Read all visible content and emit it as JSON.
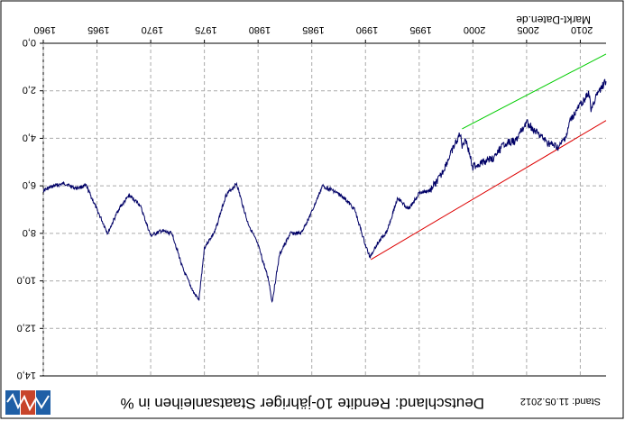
{
  "chart_data": {
    "type": "line",
    "title": "Deutschland: Rendite 10-jähriger Staatsanleihen in %",
    "source": "Markt-Daten.de",
    "stand": "Stand: 11.05.2012",
    "x_ticks": [
      "1960",
      "1965",
      "1970",
      "1975",
      "1980",
      "1985",
      "1990",
      "1995",
      "2000",
      "2005",
      "2010"
    ],
    "y_ticks": [
      "0,0",
      "2,0",
      "4,0",
      "6,0",
      "8,0",
      "10,0",
      "12,0",
      "14,0"
    ],
    "xlim": [
      1960,
      2012.4
    ],
    "ylim": [
      0,
      14
    ],
    "y_inverted": true,
    "grid": true,
    "series": [
      {
        "color": "#000066",
        "x": [
          1960,
          1961,
          1962,
          1963,
          1964,
          1965,
          1966,
          1967,
          1968,
          1969,
          1970,
          1971,
          1972,
          1973,
          1974,
          1974.5,
          1975,
          1976,
          1977,
          1978,
          1979,
          1980,
          1981,
          1981.3,
          1982,
          1983,
          1984,
          1985,
          1986,
          1987,
          1988,
          1989,
          1990,
          1990.4,
          1991,
          1992,
          1993,
          1994,
          1995,
          1996,
          1997,
          1998,
          1998.8,
          1999,
          1999.3,
          2000,
          2001,
          2002,
          2003,
          2004,
          2005,
          2006,
          2007,
          2008,
          2008.8,
          2009,
          2010,
          2010.8,
          2011,
          2011.3,
          2011.9,
          2012.4
        ],
        "y": [
          6.2,
          6.0,
          5.9,
          6.1,
          6.0,
          7.0,
          8.0,
          7.0,
          6.4,
          6.8,
          8.1,
          7.9,
          8.0,
          9.5,
          10.5,
          10.8,
          8.6,
          7.9,
          6.4,
          5.9,
          7.5,
          8.5,
          10.0,
          10.9,
          8.9,
          8.0,
          8.0,
          7.1,
          6.0,
          6.2,
          6.5,
          7.0,
          8.5,
          9.0,
          8.5,
          7.9,
          6.5,
          7.0,
          6.3,
          6.2,
          5.6,
          4.6,
          3.8,
          4.3,
          4.0,
          5.2,
          5.0,
          4.8,
          4.2,
          4.1,
          3.3,
          3.8,
          4.2,
          4.4,
          3.8,
          3.3,
          2.6,
          2.1,
          2.8,
          2.4,
          1.9,
          1.6
        ]
      },
      {
        "color": "#00CC00",
        "x": [
          1999,
          2012.4
        ],
        "y": [
          3.6,
          0.45
        ]
      },
      {
        "color": "#DD0000",
        "x": [
          1990.5,
          2012.4
        ],
        "y": [
          9.1,
          3.25
        ]
      }
    ]
  },
  "logo": {
    "colors": [
      "#1F5FA6",
      "#C8442A",
      "#1F5FA6"
    ]
  }
}
